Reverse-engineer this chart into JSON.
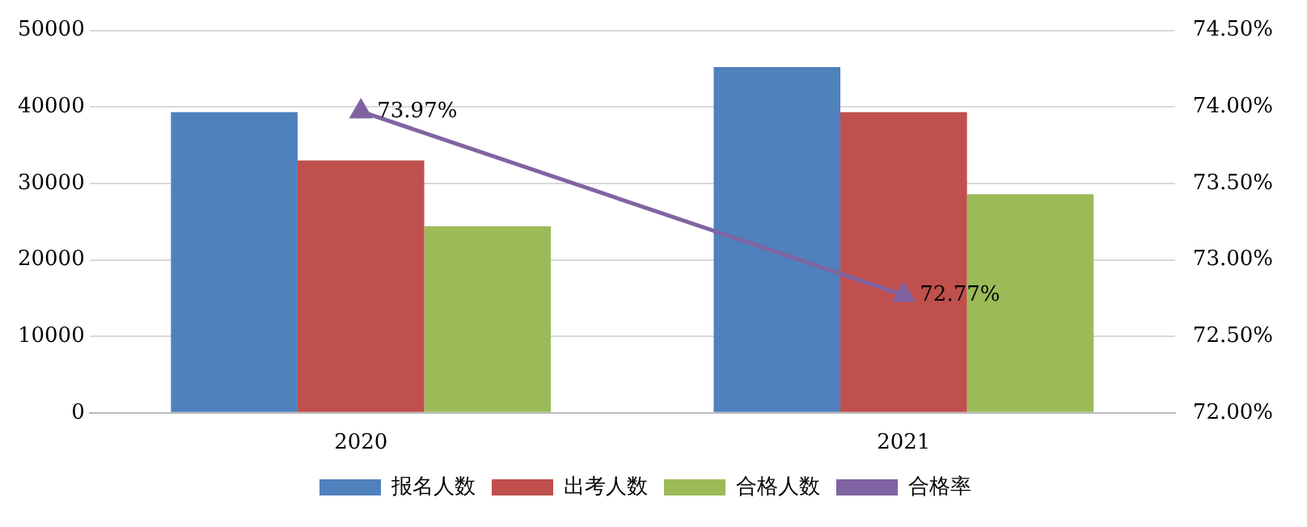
{
  "chart_data": {
    "type": "bar",
    "categories": [
      "2020",
      "2021"
    ],
    "series": [
      {
        "name": "报名人数",
        "color": "#4f81bd",
        "values": [
          39300,
          45200
        ]
      },
      {
        "name": "出考人数",
        "color": "#c0504d",
        "values": [
          33000,
          39300
        ]
      },
      {
        "name": "合格人数",
        "color": "#9bbb59",
        "values": [
          24400,
          28600
        ]
      },
      {
        "name": "合格率",
        "type": "line",
        "axis": "y2",
        "color": "#8064a2",
        "values": [
          73.97,
          72.77
        ],
        "value_labels": [
          "73.97%",
          "72.77%"
        ]
      }
    ],
    "ylim": [
      0,
      50000
    ],
    "yticks": [
      0,
      10000,
      20000,
      30000,
      40000,
      50000
    ],
    "y2lim": [
      72,
      74.5
    ],
    "y2ticks": [
      {
        "value": 72,
        "label": "72.00%"
      },
      {
        "value": 72.5,
        "label": "72.50%"
      },
      {
        "value": 73,
        "label": "73.00%"
      },
      {
        "value": 73.5,
        "label": "73.50%"
      },
      {
        "value": 74,
        "label": "74.00%"
      },
      {
        "value": 74.5,
        "label": "74.50%"
      }
    ],
    "grid": "y",
    "legend": "bottom",
    "marker": "triangle"
  }
}
